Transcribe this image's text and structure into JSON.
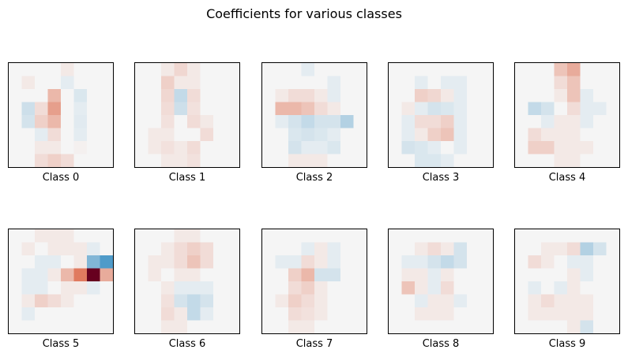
{
  "chart_data": {
    "type": "heatmap",
    "title": "Coefficients for various classes",
    "colormap": "RdBu",
    "colors": {
      "neutral": "#f5f5f5",
      "positive_strong": "#67001f",
      "positive_mid": "#e07a5f",
      "negative_mid": "#4f9bc9",
      "negative_strong": "#053061"
    },
    "grid": "8x8",
    "panels": [
      {
        "label": "Class 0",
        "values": [
          [
            0,
            0,
            0,
            0,
            0.05,
            0,
            0,
            0
          ],
          [
            0,
            0.05,
            0,
            0,
            -0.05,
            0,
            0,
            0
          ],
          [
            0,
            0,
            0,
            0.25,
            0,
            -0.08,
            0,
            0
          ],
          [
            0,
            -0.12,
            0.1,
            0.35,
            0,
            -0.05,
            0,
            0
          ],
          [
            0,
            -0.1,
            0.15,
            0.25,
            0,
            -0.06,
            0,
            0
          ],
          [
            0,
            0,
            -0.05,
            0.1,
            0,
            -0.05,
            0,
            0
          ],
          [
            0,
            0,
            0.05,
            0.05,
            0,
            0.02,
            0,
            0
          ],
          [
            0,
            0,
            0.1,
            0.15,
            0.1,
            0,
            0,
            0
          ]
        ]
      },
      {
        "label": "Class 1",
        "values": [
          [
            0,
            0,
            0.05,
            0.12,
            0.05,
            0,
            0,
            0
          ],
          [
            0,
            0,
            0.15,
            0.05,
            0.05,
            0,
            0,
            0
          ],
          [
            0,
            0,
            0.12,
            -0.15,
            0.1,
            0,
            0,
            0
          ],
          [
            0,
            0,
            0.1,
            -0.12,
            0.08,
            0,
            0,
            0
          ],
          [
            0,
            0,
            0.08,
            0,
            0.1,
            0.05,
            0,
            0
          ],
          [
            0,
            0.05,
            0.05,
            0,
            0,
            0.1,
            0,
            0
          ],
          [
            0,
            0.05,
            0.08,
            0.05,
            0.1,
            0,
            0,
            0
          ],
          [
            0,
            0,
            0.05,
            0.05,
            0.08,
            0,
            0,
            0
          ]
        ]
      },
      {
        "label": "Class 2",
        "values": [
          [
            0,
            0,
            0,
            -0.05,
            0,
            0,
            0,
            0
          ],
          [
            0,
            0,
            0,
            0,
            0,
            -0.05,
            0,
            0
          ],
          [
            0,
            0.05,
            0.1,
            0.1,
            0.05,
            -0.05,
            0,
            0
          ],
          [
            0,
            0.25,
            0.25,
            0.2,
            0.1,
            0.05,
            0,
            0
          ],
          [
            0,
            -0.05,
            -0.1,
            -0.15,
            -0.1,
            -0.1,
            -0.2,
            0
          ],
          [
            0,
            0,
            -0.08,
            -0.1,
            -0.08,
            -0.05,
            0,
            0
          ],
          [
            0,
            0,
            -0.1,
            -0.05,
            -0.05,
            -0.08,
            0,
            0
          ],
          [
            0,
            0,
            0.05,
            0.05,
            0.05,
            0,
            0,
            0
          ]
        ]
      },
      {
        "label": "Class 3",
        "values": [
          [
            0,
            0,
            0,
            0,
            0,
            0,
            0,
            0
          ],
          [
            0,
            0,
            -0.05,
            0,
            -0.05,
            -0.05,
            0,
            0
          ],
          [
            0,
            0,
            0.15,
            0.12,
            0.05,
            -0.05,
            0,
            0
          ],
          [
            0,
            0.05,
            -0.05,
            -0.1,
            -0.08,
            -0.05,
            0,
            0
          ],
          [
            0,
            -0.05,
            0.1,
            0.1,
            0.15,
            -0.05,
            0,
            0
          ],
          [
            0,
            -0.05,
            0.05,
            0.15,
            0.2,
            -0.05,
            0,
            0
          ],
          [
            0,
            -0.1,
            -0.08,
            -0.05,
            0,
            -0.05,
            0,
            0
          ],
          [
            0,
            0,
            -0.08,
            -0.08,
            -0.05,
            0,
            0,
            0
          ]
        ]
      },
      {
        "label": "Class 4",
        "values": [
          [
            0,
            0,
            0,
            0.2,
            0.3,
            0,
            0,
            0
          ],
          [
            0,
            0,
            0,
            0.1,
            0.2,
            0,
            0,
            0
          ],
          [
            0,
            0,
            0,
            0.05,
            0.2,
            -0.05,
            0,
            0
          ],
          [
            0,
            -0.15,
            -0.1,
            0,
            0.1,
            -0.05,
            -0.05,
            0
          ],
          [
            0,
            0,
            -0.05,
            0.05,
            0.05,
            -0.05,
            0,
            0
          ],
          [
            0,
            0.1,
            0.05,
            0.05,
            0.05,
            0,
            0,
            0
          ],
          [
            0,
            0.15,
            0.15,
            0.05,
            0.05,
            0.05,
            0,
            0
          ],
          [
            0,
            0,
            0,
            0.05,
            0.05,
            0,
            0,
            0
          ]
        ]
      },
      {
        "label": "Class 5",
        "values": [
          [
            0,
            0,
            0.05,
            0.05,
            0.05,
            0,
            0,
            0
          ],
          [
            0,
            0.05,
            0,
            0.05,
            0.05,
            0.05,
            -0.05,
            0
          ],
          [
            0,
            0,
            -0.05,
            -0.05,
            0,
            0.05,
            -0.35,
            -0.5
          ],
          [
            0,
            -0.05,
            -0.05,
            0.05,
            0.25,
            0.5,
            1.0,
            0.3
          ],
          [
            0,
            -0.05,
            -0.05,
            0,
            0.05,
            0.05,
            -0.05,
            0
          ],
          [
            0,
            0.05,
            0.15,
            0.1,
            0.05,
            0,
            0,
            0
          ],
          [
            0,
            -0.05,
            0,
            0,
            0,
            0,
            0,
            0
          ],
          [
            0,
            0,
            0,
            0,
            0,
            0,
            0,
            0
          ]
        ]
      },
      {
        "label": "Class 6",
        "values": [
          [
            0,
            0,
            0,
            0.05,
            0.05,
            0,
            0,
            0
          ],
          [
            0,
            0,
            0.05,
            0.1,
            0.15,
            0.1,
            0,
            0
          ],
          [
            0,
            0.05,
            0.05,
            0.1,
            0.2,
            0.1,
            0,
            0
          ],
          [
            0,
            0.05,
            0,
            0.05,
            0.05,
            0,
            0,
            0
          ],
          [
            0,
            0,
            0.05,
            -0.05,
            -0.05,
            -0.05,
            0,
            0
          ],
          [
            0,
            0,
            0.08,
            -0.1,
            -0.15,
            -0.1,
            0,
            0
          ],
          [
            0,
            0,
            0.1,
            0.05,
            -0.15,
            -0.05,
            0,
            0
          ],
          [
            0,
            0,
            0.05,
            0.05,
            0,
            0,
            0,
            0
          ]
        ]
      },
      {
        "label": "Class 7",
        "values": [
          [
            0,
            0,
            0,
            0,
            0,
            0,
            0,
            0
          ],
          [
            0,
            0,
            0,
            -0.05,
            0.05,
            -0.05,
            0,
            0
          ],
          [
            0,
            -0.05,
            -0.05,
            0.1,
            0.05,
            -0.05,
            0,
            0
          ],
          [
            0,
            0,
            0.15,
            0.25,
            -0.1,
            -0.1,
            0,
            0
          ],
          [
            0,
            0,
            0.1,
            0.15,
            0.05,
            0,
            0,
            0
          ],
          [
            0,
            0.05,
            0.15,
            0.1,
            0.05,
            0,
            0,
            0
          ],
          [
            0,
            0,
            0.1,
            0.08,
            0.05,
            0,
            0,
            0
          ],
          [
            0,
            0,
            0.05,
            0.05,
            0,
            0,
            0,
            0
          ]
        ]
      },
      {
        "label": "Class 8",
        "values": [
          [
            0,
            0,
            0,
            0,
            0,
            0,
            0,
            0
          ],
          [
            0,
            0,
            0.05,
            0.1,
            0.05,
            -0.1,
            0,
            0
          ],
          [
            0,
            -0.05,
            -0.05,
            -0.1,
            -0.15,
            -0.1,
            0,
            0
          ],
          [
            0,
            0.05,
            0.05,
            -0.05,
            0.05,
            0,
            0,
            0
          ],
          [
            0,
            0.2,
            0.05,
            -0.05,
            0.1,
            0,
            0,
            0
          ],
          [
            0,
            0,
            -0.05,
            0.05,
            0.05,
            -0.05,
            0,
            0
          ],
          [
            0,
            0,
            0.05,
            0.05,
            0.05,
            0,
            0,
            0
          ],
          [
            0,
            0,
            0,
            0,
            0,
            0,
            0,
            0
          ]
        ]
      },
      {
        "label": "Class 9",
        "values": [
          [
            0,
            0,
            0,
            0,
            0,
            0,
            0,
            0
          ],
          [
            0,
            0,
            0.05,
            0.05,
            0.1,
            -0.2,
            -0.1,
            0
          ],
          [
            0,
            0.1,
            0.05,
            0,
            -0.05,
            -0.05,
            0,
            0
          ],
          [
            0,
            0,
            0,
            0,
            0.05,
            -0.05,
            0,
            0
          ],
          [
            0,
            -0.05,
            0,
            -0.05,
            0.05,
            0,
            0,
            0
          ],
          [
            0,
            0.05,
            0.1,
            0.05,
            0.05,
            0.05,
            0,
            0
          ],
          [
            0,
            0.05,
            0.05,
            0.05,
            0.05,
            0.05,
            0,
            0
          ],
          [
            0,
            0,
            0,
            0,
            0.05,
            -0.1,
            0,
            0
          ]
        ]
      }
    ]
  }
}
